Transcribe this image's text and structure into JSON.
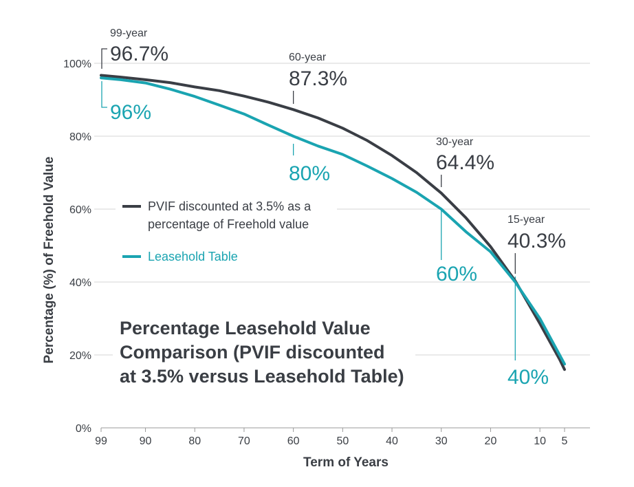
{
  "colors": {
    "pvif": "#3a3e45",
    "leasehold": "#1aa4b1",
    "grid": "#d6d6d6",
    "axis": "#9a9a9a",
    "text": "#3a3e44"
  },
  "chart_data": {
    "type": "line",
    "title": [
      "Percentage Leasehold Value",
      "Comparison (PVIF discounted",
      "at 3.5% versus Leasehold Table)"
    ],
    "xlabel": "Term of Years",
    "ylabel": "Percentage (%) of Freehold Value",
    "xlim": [
      99,
      5
    ],
    "ylim": [
      0,
      100
    ],
    "grid": "horizontal",
    "x_ticks": [
      99,
      90,
      80,
      70,
      60,
      50,
      40,
      30,
      20,
      10,
      5
    ],
    "y_ticks": [
      0,
      20,
      40,
      60,
      80,
      100
    ],
    "y_tick_labels": [
      "0%",
      "20%",
      "40%",
      "60%",
      "80%",
      "100%"
    ],
    "legend_position": "left-middle",
    "series": [
      {
        "name": "PVIF discounted at 3.5% as a percentage of Freehold value",
        "name_lines": [
          "PVIF discounted at 3.5% as a",
          "percentage of Freehold value"
        ],
        "color": "#3a3e45",
        "points": [
          [
            99,
            96.7
          ],
          [
            95,
            96.2
          ],
          [
            90,
            95.5
          ],
          [
            85,
            94.7
          ],
          [
            80,
            93.5
          ],
          [
            75,
            92.5
          ],
          [
            70,
            91
          ],
          [
            65,
            89.3
          ],
          [
            60,
            87.3
          ],
          [
            55,
            85
          ],
          [
            50,
            82.2
          ],
          [
            45,
            78.8
          ],
          [
            40,
            74.7
          ],
          [
            35,
            70
          ],
          [
            30,
            64.4
          ],
          [
            25,
            57.6
          ],
          [
            20,
            49.7
          ],
          [
            15,
            40.3
          ],
          [
            10,
            28.6
          ],
          [
            6,
            18.8
          ],
          [
            5,
            16
          ]
        ]
      },
      {
        "name": "Leasehold Table",
        "name_lines": [
          "Leasehold Table"
        ],
        "color": "#1aa4b1",
        "points": [
          [
            99,
            96
          ],
          [
            95,
            95.5
          ],
          [
            90,
            94.6
          ],
          [
            85,
            92.9
          ],
          [
            80,
            90.9
          ],
          [
            75,
            88.5
          ],
          [
            70,
            86.1
          ],
          [
            65,
            83
          ],
          [
            60,
            80
          ],
          [
            55,
            77.3
          ],
          [
            50,
            75
          ],
          [
            45,
            71.8
          ],
          [
            40,
            68.4
          ],
          [
            35,
            64.6
          ],
          [
            30,
            60
          ],
          [
            25,
            53.8
          ],
          [
            20,
            48.3
          ],
          [
            15,
            40
          ],
          [
            10,
            30
          ],
          [
            6,
            20
          ],
          [
            5,
            17.5
          ]
        ]
      }
    ],
    "annotations": [
      {
        "term": "99-year",
        "x": 99,
        "pvif": "96.7%",
        "leasehold": "96%"
      },
      {
        "term": "60-year",
        "x": 60,
        "pvif": "87.3%",
        "leasehold": "80%"
      },
      {
        "term": "30-year",
        "x": 30,
        "pvif": "64.4%",
        "leasehold": "60%"
      },
      {
        "term": "15-year",
        "x": 15,
        "pvif": "40.3%",
        "leasehold": "40%"
      }
    ]
  }
}
